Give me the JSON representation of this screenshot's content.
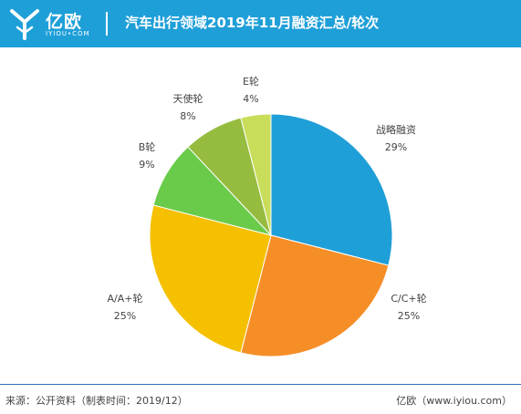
{
  "header": {
    "logo_text": "亿欧",
    "logo_sub": "IYIOU•COM",
    "title": "汽车出行领域2019年11月融资汇总/轮次"
  },
  "chart_data": {
    "type": "pie",
    "title": "汽车出行领域2019年11月融资汇总/轮次",
    "slices": [
      {
        "label": "战略融资",
        "value": 29,
        "display": "29%",
        "color": "#1f9fd8"
      },
      {
        "label": "C/C+轮",
        "value": 25,
        "display": "25%",
        "color": "#f58e27"
      },
      {
        "label": "A/A+轮",
        "value": 25,
        "display": "25%",
        "color": "#f5c000"
      },
      {
        "label": "B轮",
        "value": 9,
        "display": "9%",
        "color": "#6acb4a"
      },
      {
        "label": "天使轮",
        "value": 8,
        "display": "8%",
        "color": "#96bc3f"
      },
      {
        "label": "E轮",
        "value": 4,
        "display": "4%",
        "color": "#c8dd5a"
      }
    ]
  },
  "footer": {
    "source": "来源：公开资料（制表时间：2019/12）",
    "site": "亿欧（www.iyiou.com）"
  }
}
